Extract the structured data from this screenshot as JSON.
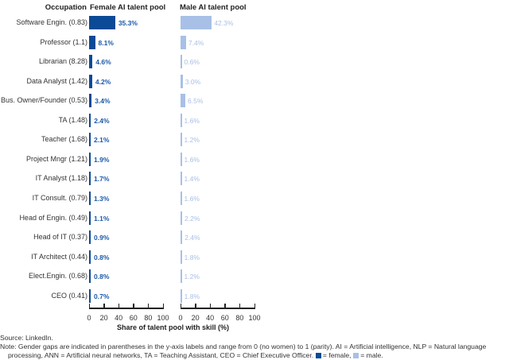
{
  "headers": {
    "occupation": "Occupation",
    "female": "Female AI talent pool",
    "male": "Male AI talent pool"
  },
  "colors": {
    "female": "#0b4a96",
    "male": "#a8c0e6"
  },
  "rows": [
    {
      "label": "Software Engin. (0.83)",
      "female": "35.3%",
      "male": "42.3%"
    },
    {
      "label": "Professor (1.1)",
      "female": "8.1%",
      "male": "7.4%"
    },
    {
      "label": "Librarian (8.28)",
      "female": "4.6%",
      "male": "0.6%"
    },
    {
      "label": "Data Analyst (1.42)",
      "female": "4.2%",
      "male": "3.0%"
    },
    {
      "label": "Bus. Owner/Founder (0.53)",
      "female": "3.4%",
      "male": "6.5%"
    },
    {
      "label": "TA (1.48)",
      "female": "2.4%",
      "male": "1.6%"
    },
    {
      "label": "Teacher (1.68)",
      "female": "2.1%",
      "male": "1.2%"
    },
    {
      "label": "Project Mngr (1.21)",
      "female": "1.9%",
      "male": "1.6%"
    },
    {
      "label": "IT Analyst (1.18)",
      "female": "1.7%",
      "male": "1.4%"
    },
    {
      "label": "IT Consult. (0.79)",
      "female": "1.3%",
      "male": "1.6%"
    },
    {
      "label": "Head of Engin. (0.49)",
      "female": "1.1%",
      "male": "2.2%"
    },
    {
      "label": "Head of IT (0.37)",
      "female": "0.9%",
      "male": "2.4%"
    },
    {
      "label": "IT Architect (0.44)",
      "female": "0.8%",
      "male": "1.8%"
    },
    {
      "label": "Elect.Engin. (0.68)",
      "female": "0.8%",
      "male": "1.2%"
    },
    {
      "label": "CEO (0.41)",
      "female": "0.7%",
      "male": "1.8%"
    }
  ],
  "axis": {
    "ticks": [
      "0",
      "20",
      "40",
      "60",
      "80",
      "100"
    ],
    "xlabel": "Share of talent pool with skill (%)"
  },
  "footer": {
    "source": "Source: LinkedIn.",
    "note_line1": "Note: Gender gaps are indicated in parentheses in the y-axis labels and  range from 0 (no women) to 1 (parity).  AI = Artificial intelligence, NLP = Natural language",
    "note_line2_a": "processing, ANN = Artificial neural networks, TA = Teaching Assistant, CEO = Chief Executive Officer.",
    "note_line2_female": "= female,",
    "note_line2_male": "= male."
  },
  "chart_data": {
    "type": "bar",
    "orientation": "horizontal",
    "title": "",
    "xlabel": "Share of talent pool with skill (%)",
    "ylabel": "Occupation",
    "xlim": [
      0,
      100
    ],
    "xticks": [
      0,
      20,
      40,
      60,
      80,
      100
    ],
    "categories": [
      "Software Engin. (0.83)",
      "Professor (1.1)",
      "Librarian (8.28)",
      "Data Analyst (1.42)",
      "Bus. Owner/Founder (0.53)",
      "TA (1.48)",
      "Teacher (1.68)",
      "Project Mngr (1.21)",
      "IT Analyst (1.18)",
      "IT Consult. (0.79)",
      "Head of Engin. (0.49)",
      "Head of IT (0.37)",
      "IT Architect (0.44)",
      "Elect.Engin. (0.68)",
      "CEO (0.41)"
    ],
    "gender_gap": [
      0.83,
      1.1,
      8.28,
      1.42,
      0.53,
      1.48,
      1.68,
      1.21,
      1.18,
      0.79,
      0.49,
      0.37,
      0.44,
      0.68,
      0.41
    ],
    "series": [
      {
        "name": "Female AI talent pool",
        "color": "#0b4a96",
        "values": [
          35.3,
          8.1,
          4.6,
          4.2,
          3.4,
          2.4,
          2.1,
          1.9,
          1.7,
          1.3,
          1.1,
          0.9,
          0.8,
          0.8,
          0.7
        ]
      },
      {
        "name": "Male AI talent pool",
        "color": "#a8c0e6",
        "values": [
          42.3,
          7.4,
          0.6,
          3.0,
          6.5,
          1.6,
          1.2,
          1.6,
          1.4,
          1.6,
          2.2,
          2.4,
          1.8,
          1.2,
          1.8
        ]
      }
    ],
    "legend": [
      "female",
      "male"
    ],
    "source": "LinkedIn"
  }
}
